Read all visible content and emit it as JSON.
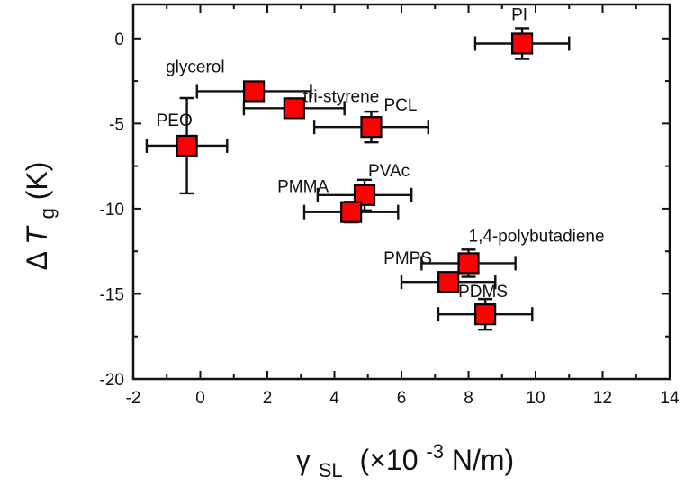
{
  "chart_data": {
    "type": "scatter",
    "title": "",
    "xlabel": "γSL (×10-3 N/m)",
    "ylabel": "ΔTg (K)",
    "x_label_parts": {
      "symbol": "γ",
      "subscript": "SL",
      "rest": "(×10",
      "exponent": "-3",
      "units": " N/m)"
    },
    "y_label_parts": {
      "delta": "Δ",
      "symbol": "T",
      "subscript": "g",
      "units": " (K)"
    },
    "xlim": [
      -2,
      14
    ],
    "ylim": [
      -20,
      2
    ],
    "x_ticks": [
      -2,
      0,
      2,
      4,
      6,
      8,
      10,
      12,
      14
    ],
    "y_ticks": [
      -20,
      -15,
      -10,
      -5,
      0
    ],
    "grid": false,
    "marker_color": "#ff0000",
    "marker_edge_color": "#000000",
    "points": [
      {
        "label": "PEO",
        "x": -0.4,
        "y": -6.3,
        "xerr": 1.2,
        "yerr": 2.8
      },
      {
        "label": "glycerol",
        "x": 1.6,
        "y": -3.1,
        "xerr": 1.7,
        "yerr": 0.5
      },
      {
        "label": "tri-styrene",
        "x": 2.8,
        "y": -4.1,
        "xerr": 1.5,
        "yerr": 0.5
      },
      {
        "label": "PCL",
        "x": 5.1,
        "y": -5.2,
        "xerr": 1.7,
        "yerr": 0.9
      },
      {
        "label": "PVAc",
        "x": 4.9,
        "y": -9.2,
        "xerr": 1.4,
        "yerr": 0.9
      },
      {
        "label": "PMMA",
        "x": 4.5,
        "y": -10.2,
        "xerr": 1.4,
        "yerr": 0.6
      },
      {
        "label": "PI",
        "x": 9.6,
        "y": -0.3,
        "xerr": 1.4,
        "yerr": 0.9
      },
      {
        "label": "1,4-polybutadiene",
        "x": 8.0,
        "y": -13.2,
        "xerr": 1.4,
        "yerr": 0.8
      },
      {
        "label": "PMPS",
        "x": 7.4,
        "y": -14.3,
        "xerr": 1.4,
        "yerr": 0.4
      },
      {
        "label": "PDMS",
        "x": 8.5,
        "y": -16.2,
        "xerr": 1.4,
        "yerr": 0.9
      }
    ]
  }
}
